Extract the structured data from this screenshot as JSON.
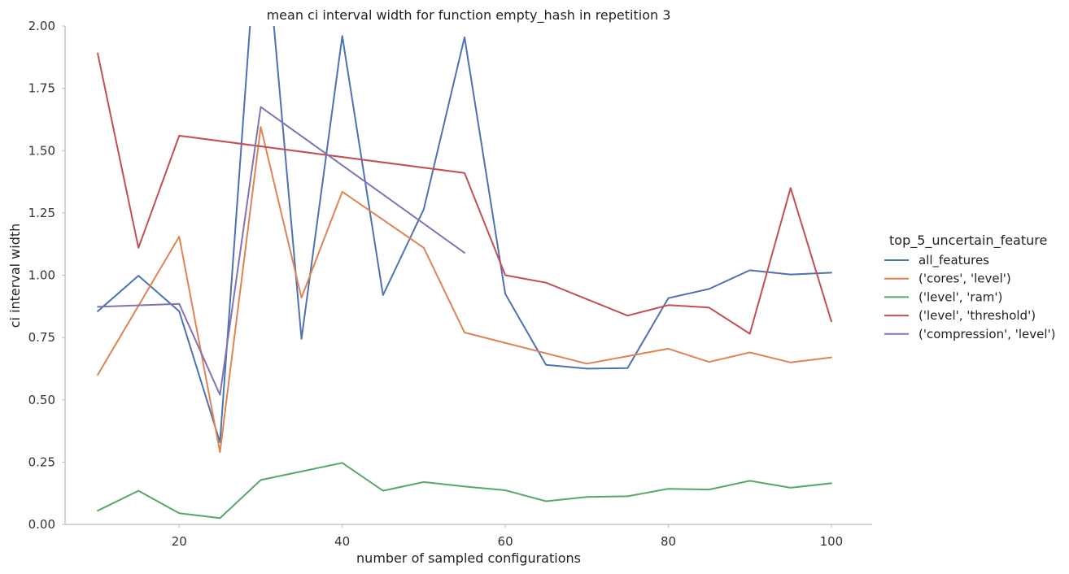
{
  "chart_data": {
    "type": "line",
    "title": "mean ci interval width for function empty_hash in repetition 3",
    "xlabel": "number of sampled configurations",
    "ylabel": "ci interval width",
    "xlim": [
      6,
      105
    ],
    "ylim": [
      0,
      2.0
    ],
    "x_ticks": [
      20,
      40,
      60,
      80,
      100
    ],
    "y_ticks": [
      0.0,
      0.25,
      0.5,
      0.75,
      1.0,
      1.25,
      1.5,
      1.75,
      2.0
    ],
    "y_tick_labels": [
      "0.00",
      "0.25",
      "0.50",
      "0.75",
      "1.00",
      "1.25",
      "1.50",
      "1.75",
      "2.00"
    ],
    "grid": false,
    "legend": {
      "title": "top_5_uncertain_feature",
      "placement": "right"
    },
    "series": [
      {
        "name": "all_features",
        "color": "#4c72b0",
        "x": [
          10,
          15,
          20,
          25,
          30,
          35,
          40,
          45,
          50,
          55,
          60,
          65,
          70,
          75,
          80,
          85,
          90,
          95,
          100
        ],
        "y": [
          0.855,
          0.998,
          0.855,
          0.33,
          2.6,
          0.745,
          1.96,
          0.92,
          1.265,
          1.955,
          0.925,
          0.64,
          0.625,
          0.627,
          0.908,
          0.945,
          1.02,
          1.003,
          1.01
        ]
      },
      {
        "name": "('cores', 'level')",
        "color": "#dd8452",
        "x": [
          10,
          20,
          25,
          30,
          35,
          40,
          50,
          55,
          70,
          80,
          85,
          90,
          95,
          100
        ],
        "y": [
          0.6,
          1.155,
          0.29,
          1.595,
          0.91,
          1.335,
          1.11,
          0.77,
          0.645,
          0.705,
          0.652,
          0.69,
          0.65,
          0.67
        ]
      },
      {
        "name": "('level', 'ram')",
        "color": "#55a868",
        "x": [
          10,
          15,
          20,
          25,
          30,
          40,
          45,
          50,
          55,
          60,
          65,
          70,
          75,
          80,
          85,
          90,
          95,
          100
        ],
        "y": [
          0.055,
          0.135,
          0.045,
          0.025,
          0.178,
          0.247,
          0.135,
          0.17,
          0.152,
          0.137,
          0.093,
          0.11,
          0.113,
          0.143,
          0.14,
          0.175,
          0.147,
          0.165
        ]
      },
      {
        "name": "('level', 'threshold')",
        "color": "#c44e52",
        "x": [
          10,
          15,
          20,
          55,
          60,
          65,
          75,
          80,
          85,
          90,
          95,
          100
        ],
        "y": [
          1.89,
          1.11,
          1.56,
          1.41,
          1.0,
          0.97,
          0.838,
          0.88,
          0.87,
          0.765,
          1.35,
          0.815
        ]
      },
      {
        "name": "('compression', 'level')",
        "color": "#8172b3",
        "x": [
          10,
          20,
          25,
          30,
          55
        ],
        "y": [
          0.873,
          0.885,
          0.52,
          1.675,
          1.09
        ]
      }
    ]
  }
}
